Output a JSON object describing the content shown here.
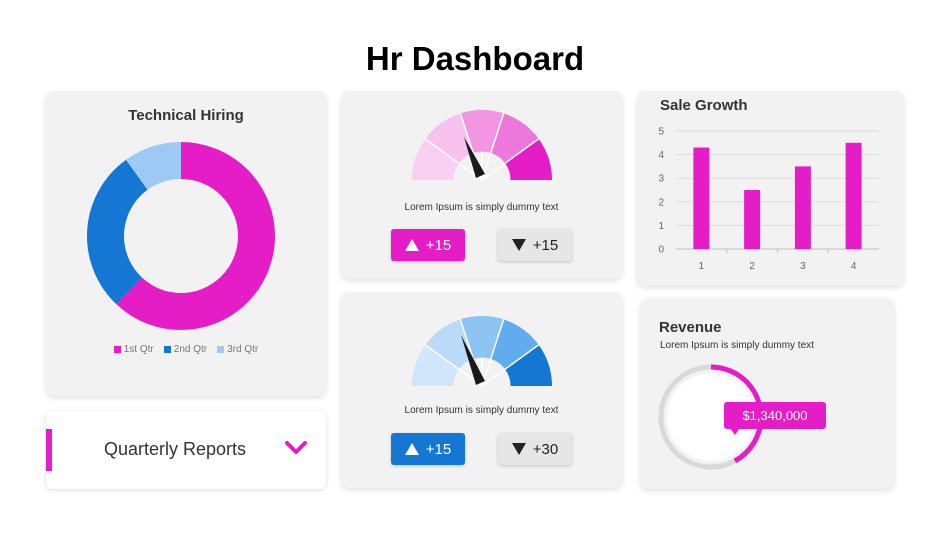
{
  "page": {
    "title": "Hr Dashboard"
  },
  "colors": {
    "magenta": "#e51dc6",
    "blue": "#1477d4",
    "light_blue": "#9ccaf5",
    "pill_grey": "#e6e6e6"
  },
  "technical_hiring": {
    "title": "Technical Hiring"
  },
  "gauge_top": {
    "caption": "Lorem Ipsum is simply dummy text",
    "up_label": "+15",
    "down_label": "+15"
  },
  "gauge_bottom": {
    "caption": "Lorem Ipsum is simply dummy text",
    "up_label": "+15",
    "down_label": "+30"
  },
  "sale_growth": {
    "title": "Sale Growth"
  },
  "revenue": {
    "title": "Revenue",
    "caption": "Lorem Ipsum is simply dummy text",
    "value": "$1,340,000",
    "progress": 0.42
  },
  "reports": {
    "label": "Quarterly Reports",
    "icon": "chevron-down-icon"
  },
  "chart_data": [
    {
      "type": "pie",
      "title": "Technical Hiring",
      "categories": [
        "1st Qtr",
        "2nd Qtr",
        "3rd Qtr"
      ],
      "values": [
        62,
        28,
        10
      ],
      "colors": [
        "#e51dc6",
        "#1477d4",
        "#9ccaf5"
      ],
      "legend": "bottom"
    },
    {
      "type": "bar",
      "title": "Sale Growth",
      "categories": [
        "1",
        "2",
        "3",
        "4"
      ],
      "values": [
        4.3,
        2.5,
        3.5,
        4.5
      ],
      "ylim": [
        0,
        5
      ],
      "yticks": [
        "0",
        "1",
        "2",
        "3",
        "4",
        "5"
      ],
      "grid": true,
      "color": "#e51dc6"
    }
  ]
}
